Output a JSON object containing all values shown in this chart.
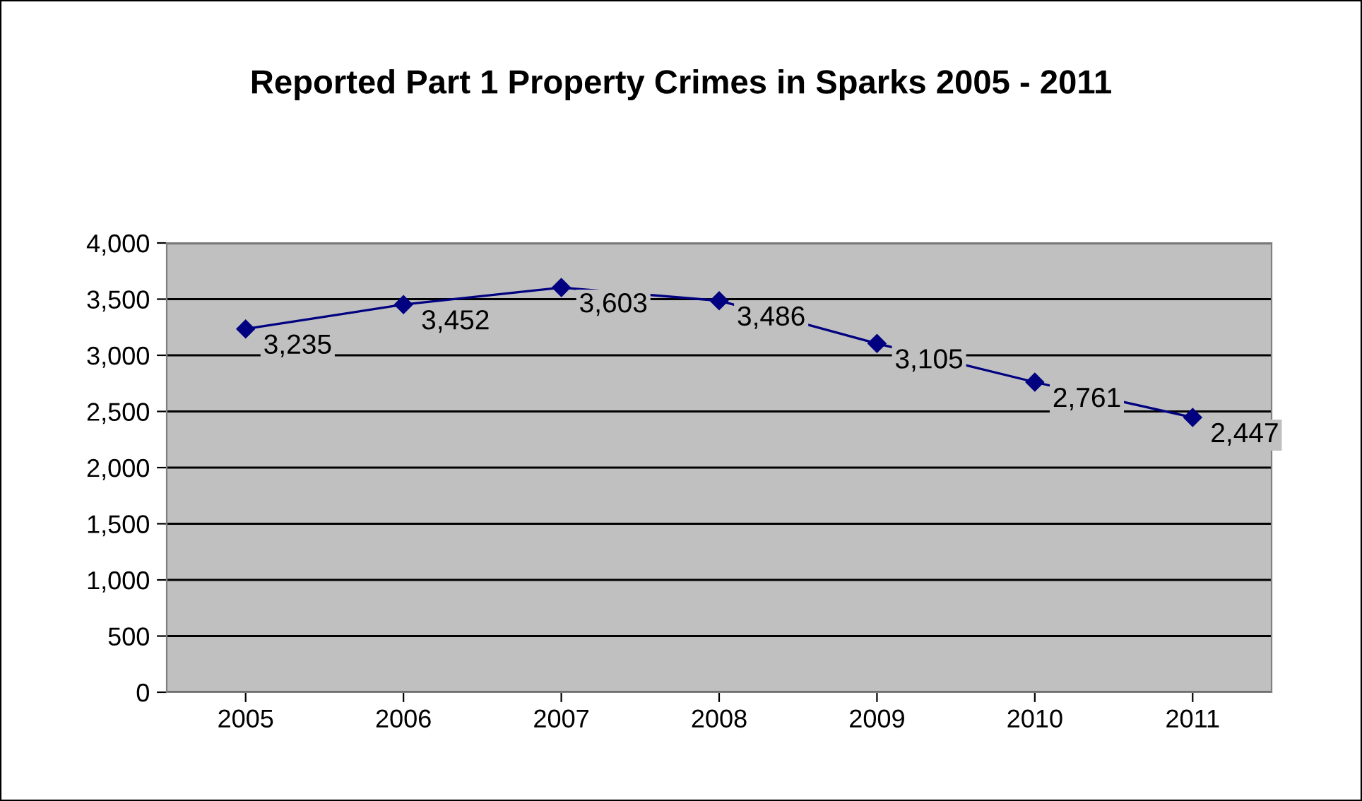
{
  "chart_data": {
    "type": "line",
    "title": "Reported Part 1 Property Crimes in Sparks 2005 - 2011",
    "categories": [
      "2005",
      "2006",
      "2007",
      "2008",
      "2009",
      "2010",
      "2011"
    ],
    "series": [
      {
        "color": "#000080",
        "values": [
          3235,
          3452,
          3603,
          3486,
          3105,
          2761,
          2447
        ],
        "value_labels": [
          "3,235",
          "3,452",
          "3,603",
          "3,486",
          "3,105",
          "2,761",
          "2,447"
        ]
      }
    ],
    "ylim": [
      0,
      4000
    ],
    "yticks": [
      0,
      500,
      {
        "value": 1000,
        "label": "1,000"
      },
      {
        "value": 1500,
        "label": "1,500"
      },
      {
        "value": 2000,
        "label": "2,000"
      },
      {
        "value": 2500,
        "label": "2,500"
      },
      {
        "value": 3000,
        "label": "3,000"
      },
      {
        "value": 3500,
        "label": "3,500"
      },
      {
        "value": 4000,
        "label": "4,000"
      }
    ],
    "grid": "y",
    "marker": "diamond",
    "line_style": "solid",
    "legend": false
  }
}
